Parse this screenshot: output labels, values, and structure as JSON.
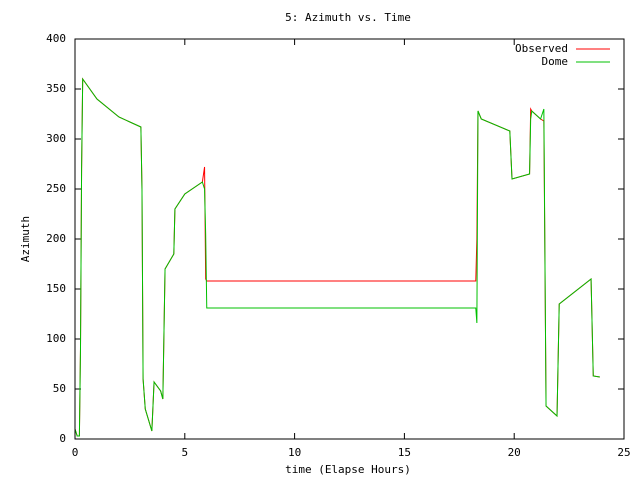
{
  "chart_data": {
    "type": "line",
    "title": "5: Azimuth vs. Time",
    "x_label": "time (Elapse Hours)",
    "y_label": "Azimuth",
    "x": [
      0,
      0.1,
      0.2,
      0.25,
      0.3,
      0.35,
      1,
      2,
      3.0,
      3.05,
      3.1,
      3.2,
      3.5,
      3.6,
      3.9,
      4.0,
      4.1,
      4.5,
      4.55,
      5,
      5.8,
      5.9,
      5.95,
      6.0,
      18.25,
      18.3,
      18.35,
      18.5,
      19.8,
      19.9,
      20.7,
      20.75,
      20.8,
      21.2,
      21.35,
      21.45,
      21.95,
      22.05,
      23.5,
      23.6,
      23.9
    ],
    "series": [
      {
        "name": "Observed",
        "color": "#ff0000",
        "values": [
          10,
          3,
          3,
          90,
          270,
          360,
          340,
          322,
          312,
          250,
          60,
          30,
          8,
          57,
          48,
          40,
          170,
          185,
          230,
          245,
          257,
          272,
          160,
          158,
          158,
          200,
          328,
          320,
          308,
          260,
          265,
          330,
          328,
          320,
          318,
          33,
          23,
          135,
          160,
          63,
          62
        ]
      },
      {
        "name": "Dome",
        "color": "#00c000",
        "values": [
          10,
          3,
          3,
          90,
          270,
          360,
          340,
          322,
          312,
          250,
          60,
          30,
          8,
          57,
          48,
          40,
          170,
          185,
          230,
          245,
          257,
          250,
          205,
          131,
          131,
          116,
          328,
          320,
          308,
          260,
          265,
          320,
          328,
          320,
          330,
          33,
          23,
          135,
          160,
          63,
          62
        ]
      }
    ],
    "xlim": [
      0,
      25
    ],
    "xticks": [
      0,
      5,
      10,
      15,
      20,
      25
    ],
    "ylim": [
      0,
      400
    ],
    "yticks": [
      0,
      50,
      100,
      150,
      200,
      250,
      300,
      350,
      400
    ],
    "legend": "top-right"
  }
}
